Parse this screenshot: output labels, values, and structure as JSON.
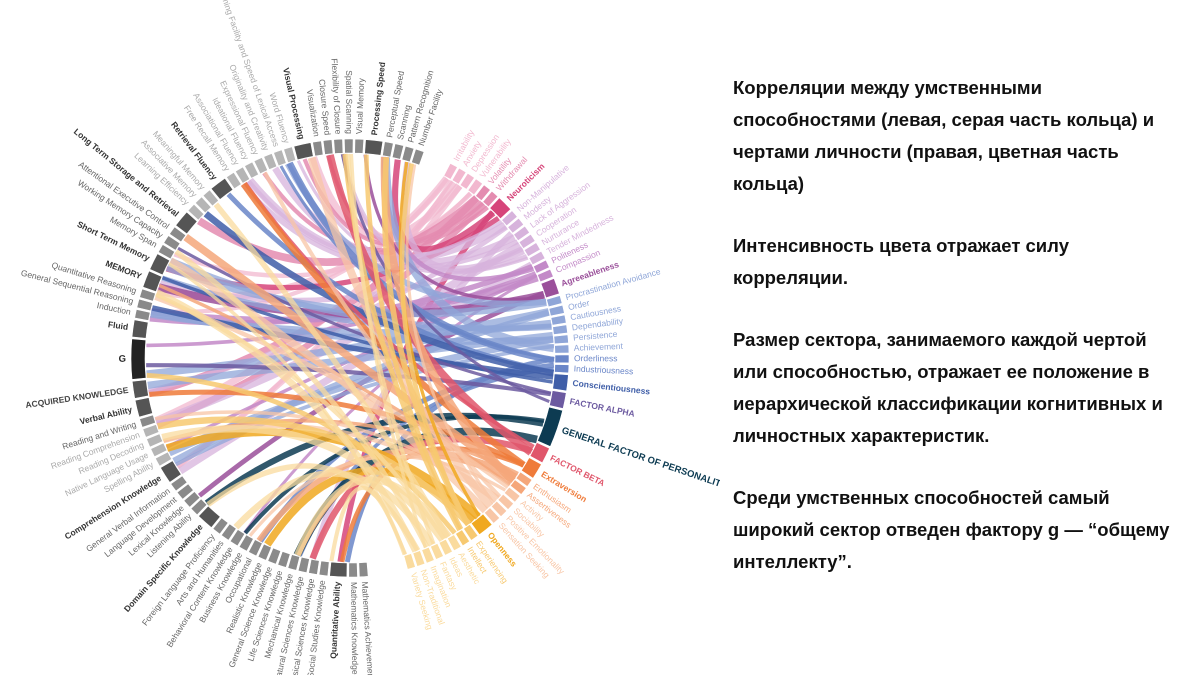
{
  "diagram": {
    "left_nodes": [
      {
        "label": "Number Facility",
        "style": "normal"
      },
      {
        "label": "Pattern Recognition",
        "style": "normal"
      },
      {
        "label": "Scanning",
        "style": "normal"
      },
      {
        "label": "Perceptual Speed",
        "style": "normal"
      },
      {
        "label": "Processing Speed",
        "style": "bold"
      },
      {
        "label": "Visual Memory",
        "style": "normal"
      },
      {
        "label": "Spatial Scanning",
        "style": "normal"
      },
      {
        "label": "Flexibility of Closure",
        "style": "normal"
      },
      {
        "label": "Closure Speed",
        "style": "normal"
      },
      {
        "label": "Visualization",
        "style": "normal"
      },
      {
        "label": "Visual Processing",
        "style": "bold"
      },
      {
        "label": "Word Fluency",
        "style": "light"
      },
      {
        "label": "Naming Facility and Speed of Lexical Access",
        "style": "light"
      },
      {
        "label": "Originality and Creativity",
        "style": "light"
      },
      {
        "label": "Expressional Fluency",
        "style": "light"
      },
      {
        "label": "Ideational Fluency",
        "style": "light"
      },
      {
        "label": "Associational Fluency",
        "style": "light"
      },
      {
        "label": "Free Recall Memory",
        "style": "light"
      },
      {
        "label": "Retrieval Fluency",
        "style": "bold"
      },
      {
        "label": "Meaningful Memory",
        "style": "light"
      },
      {
        "label": "Associative Memory",
        "style": "light"
      },
      {
        "label": "Learning Efficiency",
        "style": "light"
      },
      {
        "label": "Long Term Storage and Retrieval",
        "style": "bold"
      },
      {
        "label": "Attentional Executive Control",
        "style": "normal"
      },
      {
        "label": "Working Memory Capacity",
        "style": "normal"
      },
      {
        "label": "Memory Span",
        "style": "normal"
      },
      {
        "label": "Short Term Memory",
        "style": "bold"
      },
      {
        "label": "MEMORY",
        "style": "bold"
      },
      {
        "label": "Quantitative Reasoning",
        "style": "normal"
      },
      {
        "label": "General Sequential Reasoning",
        "style": "normal"
      },
      {
        "label": "Induction",
        "style": "normal"
      },
      {
        "label": "Fluid",
        "style": "bold"
      },
      {
        "label": "G",
        "style": "top"
      },
      {
        "label": "ACQUIRED KNOWLEDGE",
        "style": "caps"
      },
      {
        "label": "Verbal Ability",
        "style": "bold"
      },
      {
        "label": "Reading and Writing",
        "style": "normal"
      },
      {
        "label": "Reading Comprehension",
        "style": "light"
      },
      {
        "label": "Reading Decoding",
        "style": "light"
      },
      {
        "label": "Native Language Usage",
        "style": "light"
      },
      {
        "label": "Spelling Ability",
        "style": "light"
      },
      {
        "label": "Comprehension Knowledge",
        "style": "bold"
      },
      {
        "label": "General Verbal Information",
        "style": "normal"
      },
      {
        "label": "Language Development",
        "style": "normal"
      },
      {
        "label": "Lexical Knowledge",
        "style": "normal"
      },
      {
        "label": "Listening Ability",
        "style": "normal"
      },
      {
        "label": "Domain Specific Knowledge",
        "style": "bold"
      },
      {
        "label": "Foreign Language Proficiency",
        "style": "normal"
      },
      {
        "label": "Arts and Humanities",
        "style": "normal"
      },
      {
        "label": "Behavioral Content Knowledge",
        "style": "normal"
      },
      {
        "label": "Business Knowledge",
        "style": "normal"
      },
      {
        "label": "Occupational",
        "style": "normal"
      },
      {
        "label": "Realistic Knowledge",
        "style": "normal"
      },
      {
        "label": "General Science Knowledge",
        "style": "normal"
      },
      {
        "label": "Life Sciences Knowledge",
        "style": "normal"
      },
      {
        "label": "Mechanical Knowledge",
        "style": "normal"
      },
      {
        "label": "Natural Sciences Knowledge",
        "style": "normal"
      },
      {
        "label": "Physical Sciences Knowledge",
        "style": "normal"
      },
      {
        "label": "Social Studies Knowledge",
        "style": "normal"
      },
      {
        "label": "Quantitative Ability",
        "style": "bold"
      },
      {
        "label": "Mathematics Knowledge",
        "style": "normal"
      },
      {
        "label": "Mathematics Achievement",
        "style": "normal"
      }
    ],
    "right_nodes": [
      {
        "label": "Irritability",
        "style": "light",
        "color": "#f2b8cf"
      },
      {
        "label": "Anxiety",
        "style": "light",
        "color": "#f2b8cf"
      },
      {
        "label": "Depression",
        "style": "light",
        "color": "#f2b8cf"
      },
      {
        "label": "Vulnerability",
        "style": "light",
        "color": "#f2b8cf"
      },
      {
        "label": "Volatility",
        "style": "normal",
        "color": "#e48cb0"
      },
      {
        "label": "Withdrawal",
        "style": "normal",
        "color": "#e48cb0"
      },
      {
        "label": "Neuroticism",
        "style": "bold",
        "color": "#d6457a"
      },
      {
        "label": "Non-Manipulative",
        "style": "light",
        "color": "#d7b3dc"
      },
      {
        "label": "Modesty",
        "style": "light",
        "color": "#d7b3dc"
      },
      {
        "label": "Lack of Aggression",
        "style": "light",
        "color": "#d7b3dc"
      },
      {
        "label": "Cooperation",
        "style": "light",
        "color": "#d7b3dc"
      },
      {
        "label": "Nurturance",
        "style": "light",
        "color": "#d7b3dc"
      },
      {
        "label": "Tender Mindedness",
        "style": "light",
        "color": "#d7b3dc"
      },
      {
        "label": "Politeness",
        "style": "normal",
        "color": "#c38ac8"
      },
      {
        "label": "Compassion",
        "style": "normal",
        "color": "#c38ac8"
      },
      {
        "label": "Agreeableness",
        "style": "bold",
        "color": "#9a4f9a"
      },
      {
        "label": "Procrastination Avoidance",
        "style": "light",
        "color": "#8fa6d8"
      },
      {
        "label": "Order",
        "style": "light",
        "color": "#8fa6d8"
      },
      {
        "label": "Cautiousness",
        "style": "light",
        "color": "#8fa6d8"
      },
      {
        "label": "Dependability",
        "style": "light",
        "color": "#8fa6d8"
      },
      {
        "label": "Persistence",
        "style": "light",
        "color": "#8fa6d8"
      },
      {
        "label": "Achievement",
        "style": "light",
        "color": "#8fa6d8"
      },
      {
        "label": "Orderliness",
        "style": "normal",
        "color": "#6a86c8"
      },
      {
        "label": "Industriousness",
        "style": "normal",
        "color": "#6a86c8"
      },
      {
        "label": "Conscientiousness",
        "style": "bold",
        "color": "#3f5ea8"
      },
      {
        "label": "FACTOR ALPHA",
        "style": "caps",
        "color": "#6c5aa0"
      },
      {
        "label": "GENERAL FACTOR OF PERSONALITY",
        "style": "top",
        "color": "#0d3b52"
      },
      {
        "label": "FACTOR BETA",
        "style": "caps",
        "color": "#e0566b"
      },
      {
        "label": "Extraversion",
        "style": "bold",
        "color": "#ef7b3a"
      },
      {
        "label": "Enthusiasm",
        "style": "normal",
        "color": "#f5a77a"
      },
      {
        "label": "Assertiveness",
        "style": "normal",
        "color": "#f5a77a"
      },
      {
        "label": "Activity",
        "style": "light",
        "color": "#f8c6a6"
      },
      {
        "label": "Sociability",
        "style": "light",
        "color": "#f8c6a6"
      },
      {
        "label": "Positive Emotionality",
        "style": "light",
        "color": "#f8c6a6"
      },
      {
        "label": "Sensation Seeking",
        "style": "light",
        "color": "#f8c6a6"
      },
      {
        "label": "Openness",
        "style": "bold",
        "color": "#f0a820"
      },
      {
        "label": "Experiencing",
        "style": "normal",
        "color": "#f7c970"
      },
      {
        "label": "Intellect",
        "style": "normal",
        "color": "#f7c970"
      },
      {
        "label": "Aesthetic",
        "style": "light",
        "color": "#fadb9e"
      },
      {
        "label": "Ideas",
        "style": "light",
        "color": "#fadb9e"
      },
      {
        "label": "Fantasy",
        "style": "light",
        "color": "#fadb9e"
      },
      {
        "label": "Imagination",
        "style": "light",
        "color": "#fadb9e"
      },
      {
        "label": "Non-Traditional",
        "style": "light",
        "color": "#fadb9e"
      },
      {
        "label": "Variety Seeking",
        "style": "light",
        "color": "#fadb9e"
      }
    ]
  },
  "notes": [
    "Корреляции между умственными способностями (левая, серая часть кольца) и чертами личности (правая, цветная часть кольца)",
    "Интенсивность цвета отражает силу корреляции.",
    "Размер сектора, занимаемого каждой чертой или способностью, отражает ее положение в иерархической классификации когнитивных и личностных характеристик.",
    "Среди умственных способностей самый широкий сектор отведен фактору g — “общему интеллекту”."
  ]
}
